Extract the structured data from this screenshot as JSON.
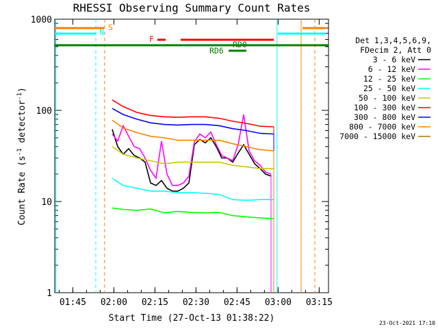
{
  "chart_data": {
    "type": "line",
    "title": "RHESSI Observing Summary Count Rates",
    "xlabel": "Start Time (27-Oct-13 01:38:22)",
    "ylabel_main": "Count Rate (s",
    "ylabel_sup": "-1",
    "ylabel_mid": " detector",
    "ylabel_end": ")",
    "y_scale": "log",
    "ylim": [
      1,
      1000
    ],
    "y_ticks": [
      "1",
      "10",
      "100",
      "1000"
    ],
    "xlim_minutes": [
      0,
      100
    ],
    "x_ticks": [
      "01:45",
      "02:00",
      "02:15",
      "02:30",
      "02:45",
      "03:00",
      "03:15"
    ],
    "x_tick_minutes": [
      6.6,
      21.6,
      36.6,
      51.6,
      66.6,
      81.6,
      96.6
    ],
    "legend_title_1": "Det 1,3,4,5,6,9,",
    "legend_title_2": "FDecim 2, Att 0",
    "legend_position": "right",
    "timestamp": "23-Oct-2021 17:10",
    "series": [
      {
        "name": "3 - 6 keV",
        "color": "#000000",
        "x": [
          21,
          23,
          25,
          27,
          29,
          31,
          33,
          35,
          37,
          39,
          41,
          43,
          45,
          47,
          49,
          51,
          53,
          55,
          57,
          59,
          61,
          63,
          65,
          67,
          69,
          71,
          73,
          75,
          77,
          79
        ],
        "y": [
          62,
          40,
          33,
          38,
          32,
          30,
          27,
          16,
          15,
          17,
          14,
          13,
          13,
          14,
          16,
          42,
          48,
          44,
          50,
          40,
          30,
          30,
          27,
          34,
          42,
          33,
          26,
          23,
          20,
          19
        ]
      },
      {
        "name": "6 - 12 keV",
        "color": "#ff00ff",
        "x": [
          21,
          23,
          25,
          27,
          29,
          31,
          33,
          35,
          37,
          39,
          41,
          43,
          45,
          47,
          49,
          51,
          53,
          55,
          57,
          59,
          61,
          63,
          65,
          67,
          69,
          71,
          73,
          75,
          77,
          79
        ],
        "y": [
          55,
          46,
          68,
          52,
          40,
          38,
          30,
          22,
          18,
          46,
          20,
          15,
          15,
          16,
          19,
          45,
          55,
          50,
          58,
          42,
          32,
          30,
          28,
          42,
          90,
          36,
          28,
          25,
          21,
          20
        ]
      },
      {
        "name": "12 - 25 keV",
        "color": "#00ff00",
        "x": [
          21,
          25,
          30,
          35,
          40,
          45,
          50,
          55,
          60,
          65,
          70,
          75,
          80
        ],
        "y": [
          8.5,
          8.2,
          8.0,
          8.3,
          7.5,
          7.8,
          7.6,
          7.5,
          7.6,
          7.0,
          6.8,
          6.6,
          6.5
        ]
      },
      {
        "name": "25 - 50 keV",
        "color": "#00ffff",
        "x": [
          21,
          25,
          30,
          35,
          40,
          45,
          50,
          55,
          60,
          65,
          70,
          75,
          80
        ],
        "y": [
          18,
          15,
          14,
          13,
          13,
          12.5,
          12.5,
          12.3,
          12.0,
          10.5,
          10.3,
          10.5,
          10.5
        ]
      },
      {
        "name": "50 - 100 keV",
        "color": "#c8c800",
        "x": [
          21,
          25,
          30,
          35,
          40,
          45,
          50,
          55,
          60,
          65,
          70,
          75,
          80
        ],
        "y": [
          40,
          33,
          30,
          28,
          26,
          27,
          27,
          27,
          27,
          25,
          24,
          23,
          23
        ]
      },
      {
        "name": "100 - 300 keV",
        "color": "#ff0000",
        "x": [
          21,
          25,
          30,
          35,
          40,
          45,
          50,
          55,
          60,
          65,
          70,
          75,
          80
        ],
        "y": [
          130,
          110,
          95,
          88,
          85,
          84,
          85,
          85,
          82,
          76,
          72,
          67,
          66
        ]
      },
      {
        "name": "300 - 800 keV",
        "color": "#0000ff",
        "x": [
          21,
          25,
          30,
          35,
          40,
          45,
          50,
          55,
          60,
          65,
          70,
          75,
          80
        ],
        "y": [
          105,
          90,
          80,
          73,
          70,
          69,
          70,
          70,
          68,
          63,
          60,
          56,
          55
        ]
      },
      {
        "name": "800 - 7000 keV",
        "color": "#ff8000",
        "x": [
          21,
          25,
          30,
          35,
          40,
          45,
          50,
          55,
          60,
          65,
          70,
          75,
          80
        ],
        "y": [
          78,
          64,
          57,
          52,
          50,
          47,
          47,
          47,
          47,
          43,
          40,
          37,
          36
        ]
      },
      {
        "name": "7000 - 15000 keV",
        "color": "#a07800",
        "x": [],
        "y": []
      }
    ],
    "flags": {
      "S": {
        "label": "S",
        "color": "#ff8000"
      },
      "N": {
        "label": "N",
        "color": "#00ffff"
      },
      "F": {
        "label": "F",
        "color": "#ff0000"
      },
      "RD0": {
        "label": "RD0",
        "color": "#008000"
      },
      "RD6": {
        "label": "RD6",
        "color": "#008000"
      }
    }
  }
}
